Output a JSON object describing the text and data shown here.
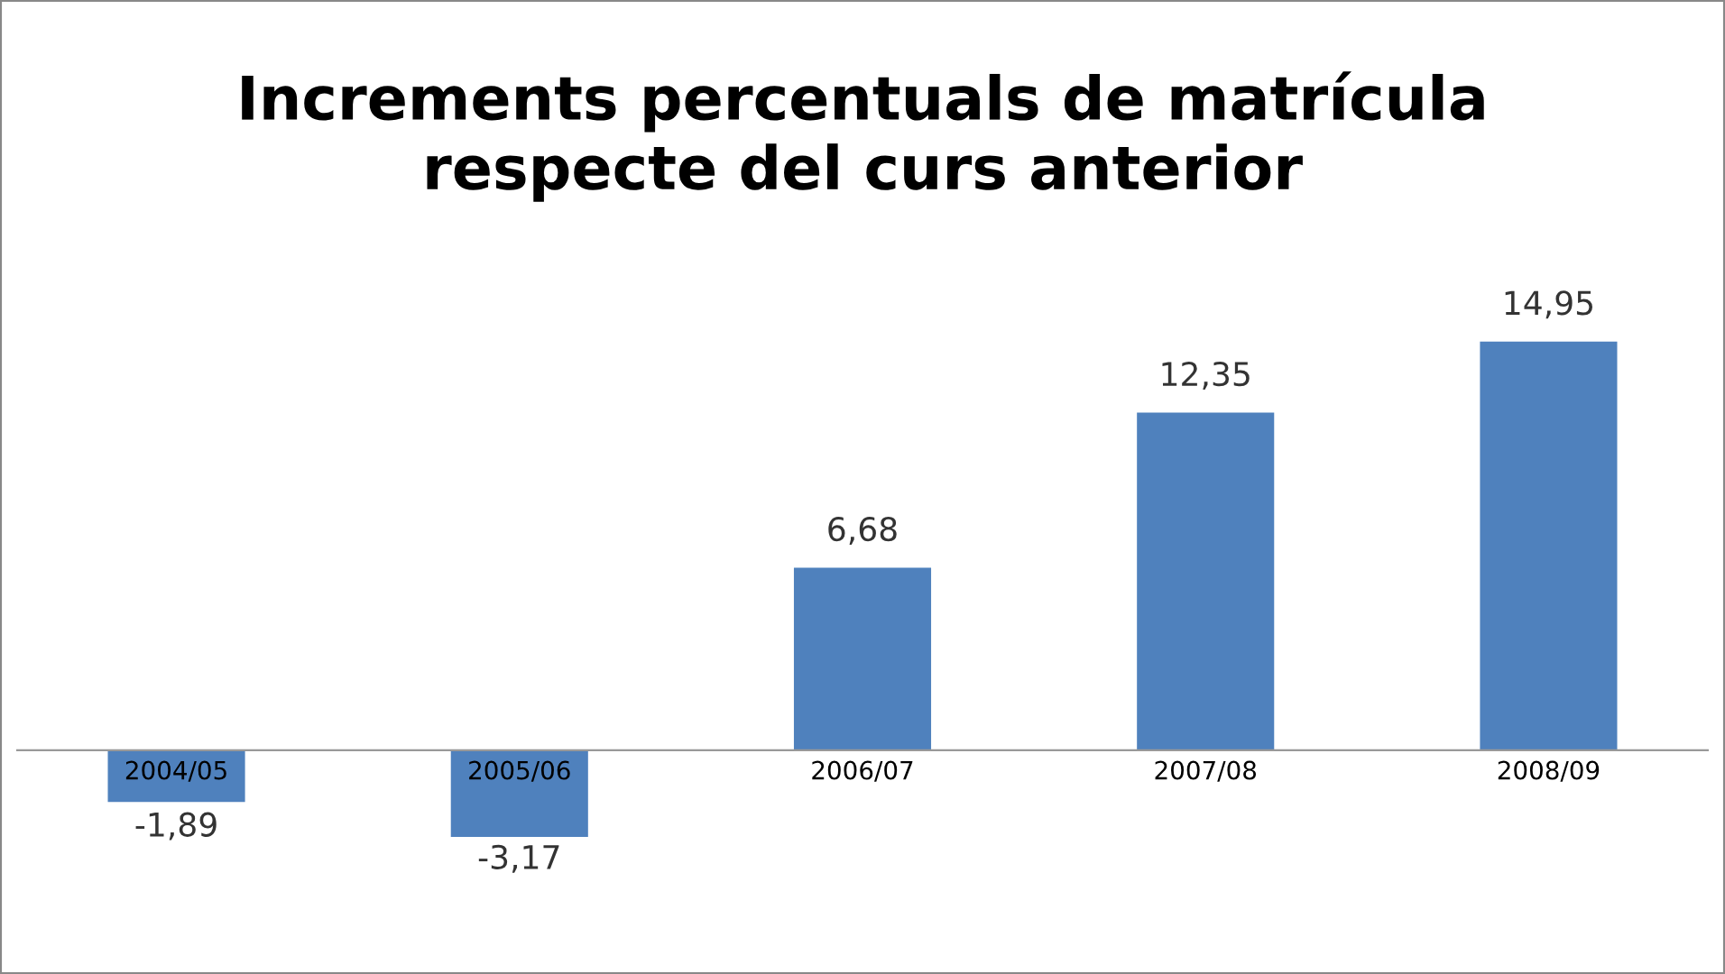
{
  "chart_data": {
    "type": "bar",
    "title": "Increments percentuals de matrícula\nrespecte del curs anterior",
    "categories": [
      "2004/05",
      "2005/06",
      "2006/07",
      "2007/08",
      "2008/09"
    ],
    "values": [
      -1.89,
      -3.17,
      6.68,
      12.35,
      14.95
    ],
    "value_labels": [
      "-1,89",
      "-3,17",
      "6,68",
      "12,35",
      "14,95"
    ],
    "color": "#4f81bd",
    "grid": false,
    "legend": false
  }
}
